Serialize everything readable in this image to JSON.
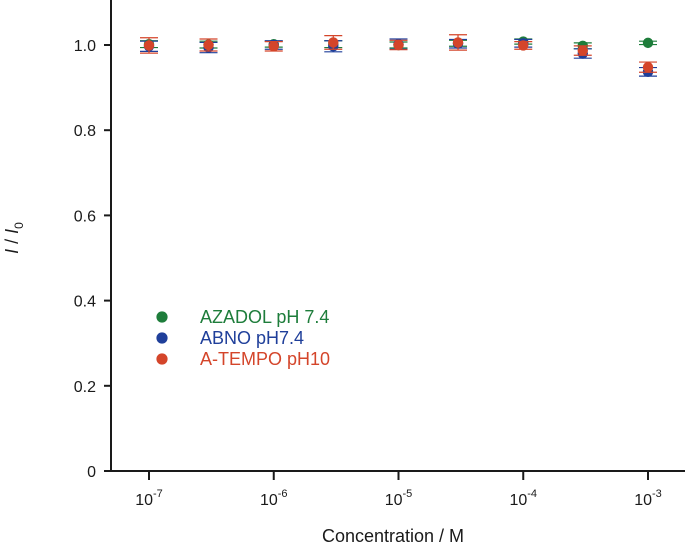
{
  "chart_data": {
    "type": "scatter",
    "title": "",
    "xlabel": "Concentration / M",
    "ylabel_main": "I",
    "ylabel_sep": " / ",
    "ylabel_sub_base": "I",
    "ylabel_subscript": "0",
    "x_scale": "log",
    "xlim_log10": [
      -7.2,
      -2.7
    ],
    "ylim": [
      0,
      1.1
    ],
    "x_ticks": [
      {
        "base": "10",
        "exp": "-7",
        "log10": -7
      },
      {
        "base": "10",
        "exp": "-6",
        "log10": -6
      },
      {
        "base": "10",
        "exp": "-5",
        "log10": -5
      },
      {
        "base": "10",
        "exp": "-4",
        "log10": -4
      },
      {
        "base": "10",
        "exp": "-3",
        "log10": -3
      }
    ],
    "y_ticks": [
      {
        "label": "0",
        "value": 0
      },
      {
        "label": "0.2",
        "value": 0.2
      },
      {
        "label": "0.4",
        "value": 0.4
      },
      {
        "label": "0.6",
        "value": 0.6
      },
      {
        "label": "0.8",
        "value": 0.8
      },
      {
        "label": "1.0",
        "value": 1.0
      }
    ],
    "legend_position": "center-left",
    "series": [
      {
        "name": "AZADOL pH 7.4",
        "color": "#1e7d3b",
        "points": [
          {
            "x": 1e-07,
            "y": 1.002,
            "err": 0.008
          },
          {
            "x": 3e-07,
            "y": 1.001,
            "err": 0.008
          },
          {
            "x": 1e-06,
            "y": 1.002,
            "err": 0.007
          },
          {
            "x": 3e-06,
            "y": 1.002,
            "err": 0.008
          },
          {
            "x": 1e-05,
            "y": 1.0,
            "err": 0.007
          },
          {
            "x": 3e-05,
            "y": 1.004,
            "err": 0.007
          },
          {
            "x": 0.0001,
            "y": 1.008,
            "err": 0.006
          },
          {
            "x": 0.0003,
            "y": 0.998,
            "err": 0.007
          },
          {
            "x": 0.001,
            "y": 1.005,
            "err": 0.004
          }
        ]
      },
      {
        "name": "ABNO pH7.4",
        "color": "#1f3f9a",
        "points": [
          {
            "x": 1e-07,
            "y": 0.997,
            "err": 0.012
          },
          {
            "x": 3e-07,
            "y": 0.994,
            "err": 0.012
          },
          {
            "x": 1e-06,
            "y": 1.0,
            "err": 0.01
          },
          {
            "x": 3e-06,
            "y": 0.997,
            "err": 0.013
          },
          {
            "x": 1e-05,
            "y": 1.002,
            "err": 0.012
          },
          {
            "x": 3e-05,
            "y": 1.003,
            "err": 0.01
          },
          {
            "x": 0.0001,
            "y": 1.004,
            "err": 0.009
          },
          {
            "x": 0.0003,
            "y": 0.98,
            "err": 0.011
          },
          {
            "x": 0.001,
            "y": 0.937,
            "err": 0.01
          }
        ]
      },
      {
        "name": "A-TEMPO pH10",
        "color": "#d4452a",
        "points": [
          {
            "x": 1e-07,
            "y": 0.999,
            "err": 0.018
          },
          {
            "x": 3e-07,
            "y": 1.0,
            "err": 0.014
          },
          {
            "x": 1e-06,
            "y": 0.997,
            "err": 0.011
          },
          {
            "x": 3e-06,
            "y": 1.006,
            "err": 0.016
          },
          {
            "x": 1e-05,
            "y": 1.0,
            "err": 0.011
          },
          {
            "x": 3e-05,
            "y": 1.006,
            "err": 0.018
          },
          {
            "x": 0.0001,
            "y": 0.999,
            "err": 0.009
          },
          {
            "x": 0.0003,
            "y": 0.987,
            "err": 0.011
          },
          {
            "x": 0.001,
            "y": 0.948,
            "err": 0.012
          }
        ]
      }
    ]
  }
}
